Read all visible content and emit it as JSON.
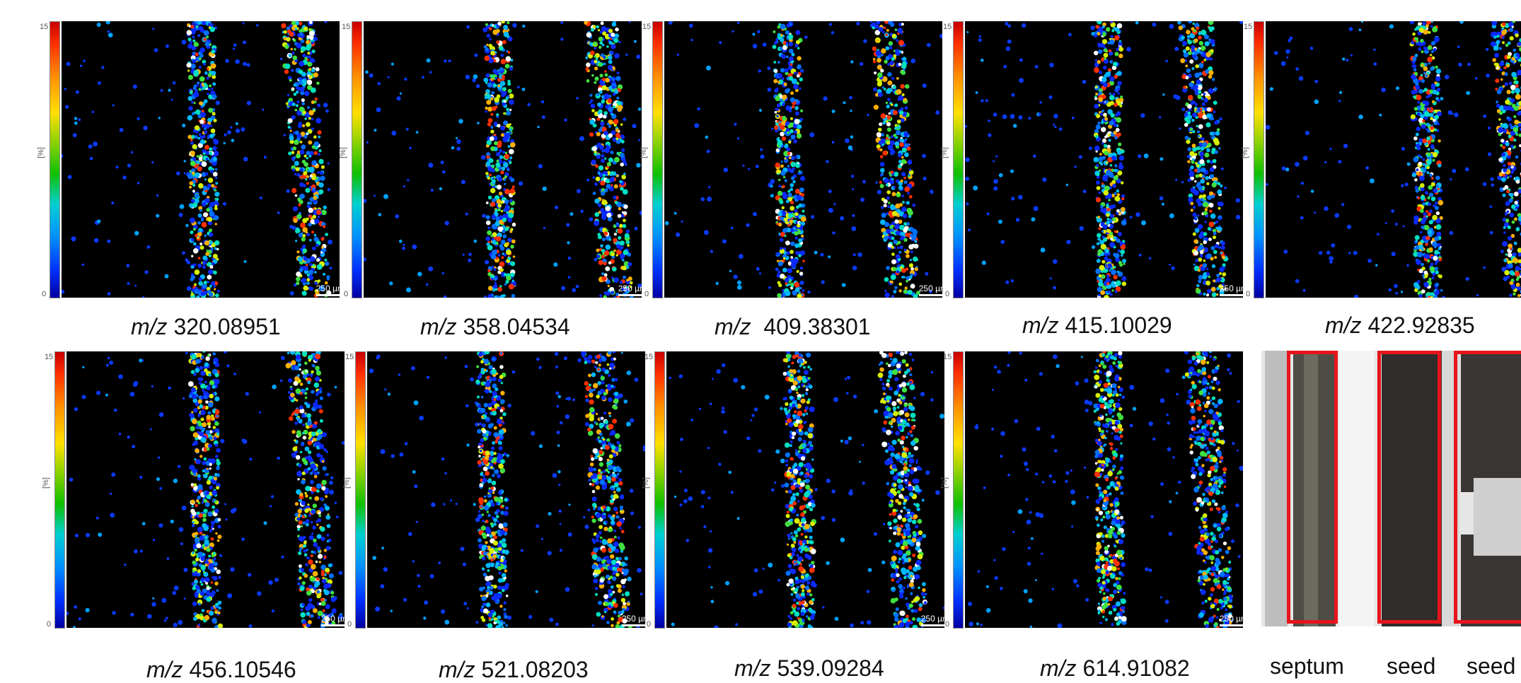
{
  "color_scale": {
    "max": "15",
    "min": "0",
    "unit": "[%]"
  },
  "scale_bar": "250 µm",
  "panels": [
    {
      "prefix": "m/z",
      "mz": "320.08951",
      "bands": [
        0.51,
        0.88
      ]
    },
    {
      "prefix": "m/z",
      "mz": "358.04534",
      "bands": [
        0.49,
        0.88
      ]
    },
    {
      "prefix": "m/z",
      "mz": "409.38301",
      "bands": [
        0.45,
        0.83
      ]
    },
    {
      "prefix": "m/z",
      "mz": "415.10029",
      "bands": [
        0.52,
        0.86
      ]
    },
    {
      "prefix": "m/z",
      "mz": "422.92835",
      "bands": [
        0.58,
        0.9
      ]
    },
    {
      "prefix": "m/z",
      "mz": "456.10546",
      "bands": [
        0.5,
        0.88
      ]
    },
    {
      "prefix": "m/z",
      "mz": "521.08203",
      "bands": [
        0.45,
        0.86
      ]
    },
    {
      "prefix": "m/z",
      "mz": "539.09284",
      "bands": [
        0.48,
        0.85
      ]
    },
    {
      "prefix": "m/z",
      "mz": "614.91082",
      "bands": [
        0.52,
        0.88
      ]
    }
  ],
  "optical": {
    "labels": [
      "septum",
      "seed",
      "seed"
    ]
  },
  "colors": {
    "region_box": "#e8141c",
    "background": "#000000"
  }
}
